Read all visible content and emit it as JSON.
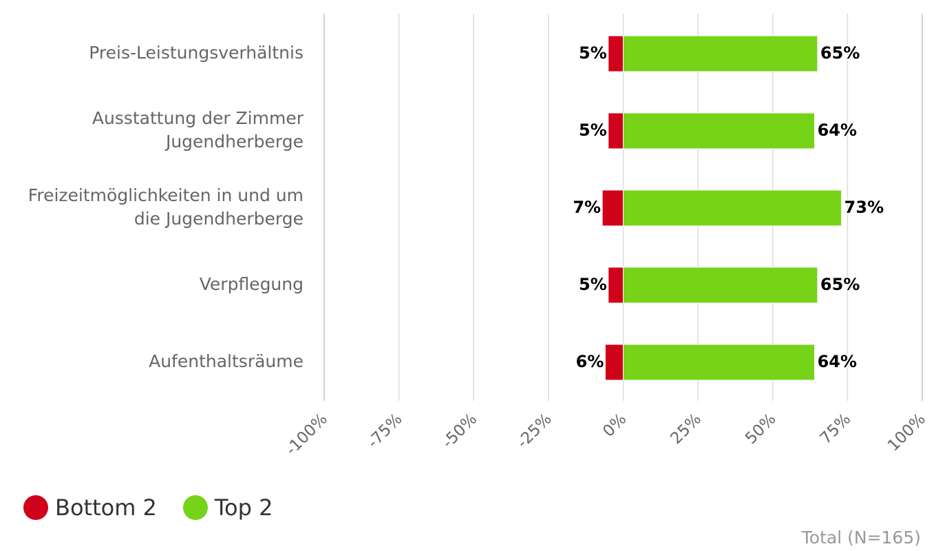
{
  "chart_data": {
    "type": "bar",
    "orientation": "horizontal",
    "stacking": "diverging",
    "categories": [
      [
        "Preis-Leistungsverhältnis"
      ],
      [
        "Ausstattung der Zimmer",
        "Jugendherberge"
      ],
      [
        "Freizeitmöglichkeiten in und um",
        "die Jugendherberge"
      ],
      [
        "Verpflegung"
      ],
      [
        "Aufenthaltsräume"
      ]
    ],
    "series": [
      {
        "name": "Bottom 2",
        "color": "#d0021b",
        "values": [
          -5,
          -5,
          -7,
          -5,
          -6
        ],
        "labels": [
          "5%",
          "5%",
          "7%",
          "5%",
          "6%"
        ]
      },
      {
        "name": "Top 2",
        "color": "#76d318",
        "values": [
          65,
          64,
          73,
          65,
          64
        ],
        "labels": [
          "65%",
          "64%",
          "73%",
          "65%",
          "64%"
        ]
      }
    ],
    "xlim": [
      -100,
      100
    ],
    "xticks": [
      -100,
      -75,
      -50,
      -25,
      0,
      25,
      50,
      75,
      100
    ],
    "xtick_labels": [
      "-100%",
      "-75%",
      "-50%",
      "-25%",
      "0%",
      "25%",
      "50%",
      "75%",
      "100%"
    ],
    "grid": true,
    "legend_position": "bottom-left"
  },
  "legend": {
    "items": [
      {
        "label": "Bottom 2",
        "color": "#d0021b"
      },
      {
        "label": "Top 2",
        "color": "#76d318"
      }
    ]
  },
  "footnote": "Total (N=165)"
}
